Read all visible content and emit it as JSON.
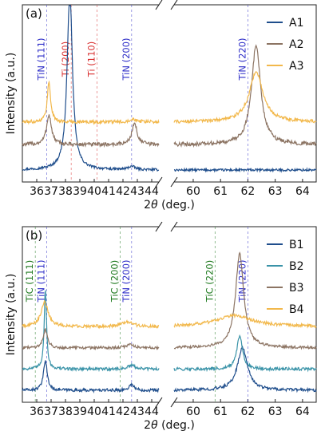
{
  "chart_data": [
    {
      "type": "line",
      "panel_label": "(a)",
      "xlabel_prefix": "2",
      "xlabel_symbol": "θ",
      "xlabel_suffix": " (deg.)",
      "ylabel": "Intensity (a.u.)",
      "broken_x_axis": true,
      "xlim_left": [
        35,
        44.5
      ],
      "xlim_right": [
        59.3,
        64.5
      ],
      "xticks_left": [
        "36",
        "37",
        "38",
        "39",
        "40",
        "41",
        "42",
        "43",
        "44"
      ],
      "xticks_right": [
        "60",
        "61",
        "62",
        "63",
        "64"
      ],
      "legend_position": "top-right",
      "reference_lines": [
        {
          "label": "TiN (111)",
          "x": 36.7,
          "color": "#2e2ec8"
        },
        {
          "label": "Ti (200)",
          "x": 38.4,
          "color": "#d93030"
        },
        {
          "label": "Ti (110)",
          "x": 40.2,
          "color": "#d93030"
        },
        {
          "label": "TiN (200)",
          "x": 42.6,
          "color": "#2e2ec8"
        },
        {
          "label": "TiN (220)",
          "x": 62.0,
          "color": "#2e2ec8"
        }
      ],
      "series": [
        {
          "name": "A1",
          "color": "#1f4e8c",
          "baseline": 0.0,
          "noise": 0.018,
          "peaks": [
            [
              38.3,
              2.7,
              0.22
            ],
            [
              42.6,
              0.05,
              0.3
            ]
          ]
        },
        {
          "name": "A2",
          "color": "#8c7463",
          "baseline": 0.38,
          "noise": 0.03,
          "peaks": [
            [
              36.85,
              0.45,
              0.2
            ],
            [
              42.8,
              0.32,
              0.22
            ],
            [
              62.3,
              1.5,
              0.2
            ]
          ]
        },
        {
          "name": "A3",
          "color": "#f2b84b",
          "baseline": 0.72,
          "noise": 0.025,
          "peaks": [
            [
              36.85,
              0.6,
              0.14
            ],
            [
              42.7,
              0.05,
              0.3
            ],
            [
              62.3,
              0.75,
              0.3
            ]
          ]
        }
      ]
    },
    {
      "type": "line",
      "panel_label": "(b)",
      "xlabel_prefix": "2",
      "xlabel_symbol": "θ",
      "xlabel_suffix": " (deg.)",
      "ylabel": "Intensity (a.u.)",
      "broken_x_axis": true,
      "xlim_left": [
        35,
        44.5
      ],
      "xlim_right": [
        59.3,
        64.5
      ],
      "xticks_left": [
        "36",
        "37",
        "38",
        "39",
        "40",
        "41",
        "42",
        "43",
        "44"
      ],
      "xticks_right": [
        "60",
        "61",
        "62",
        "63",
        "64"
      ],
      "legend_position": "top-right",
      "reference_lines": [
        {
          "label": "TiC (111)",
          "x": 35.9,
          "color": "#1f7a1f"
        },
        {
          "label": "TiN (111)",
          "x": 36.7,
          "color": "#2e2ec8"
        },
        {
          "label": "TiC (200)",
          "x": 41.8,
          "color": "#1f7a1f"
        },
        {
          "label": "TiN (200)",
          "x": 42.6,
          "color": "#2e2ec8"
        },
        {
          "label": "TiC (220)",
          "x": 60.8,
          "color": "#1f7a1f"
        },
        {
          "label": "TiN (220)",
          "x": 62.0,
          "color": "#2e2ec8"
        }
      ],
      "series": [
        {
          "name": "B1",
          "color": "#1f4e8c",
          "baseline": 0.0,
          "noise": 0.025,
          "peaks": [
            [
              36.6,
              0.5,
              0.15
            ],
            [
              42.6,
              0.1,
              0.2
            ],
            [
              61.8,
              0.7,
              0.22
            ]
          ]
        },
        {
          "name": "B2",
          "color": "#3a93a8",
          "baseline": 0.35,
          "noise": 0.025,
          "peaks": [
            [
              36.6,
              1.3,
              0.1
            ],
            [
              42.6,
              0.06,
              0.3
            ],
            [
              61.7,
              0.55,
              0.12
            ]
          ]
        },
        {
          "name": "B3",
          "color": "#8c7463",
          "baseline": 0.7,
          "noise": 0.022,
          "peaks": [
            [
              36.6,
              0.3,
              0.18
            ],
            [
              42.5,
              0.06,
              0.3
            ],
            [
              61.7,
              1.55,
              0.18
            ]
          ]
        },
        {
          "name": "B4",
          "color": "#f2b84b",
          "baseline": 1.05,
          "noise": 0.025,
          "peaks": [
            [
              36.55,
              0.4,
              0.3
            ],
            [
              42.3,
              0.08,
              0.45
            ],
            [
              61.5,
              0.18,
              0.8
            ]
          ]
        }
      ]
    }
  ]
}
